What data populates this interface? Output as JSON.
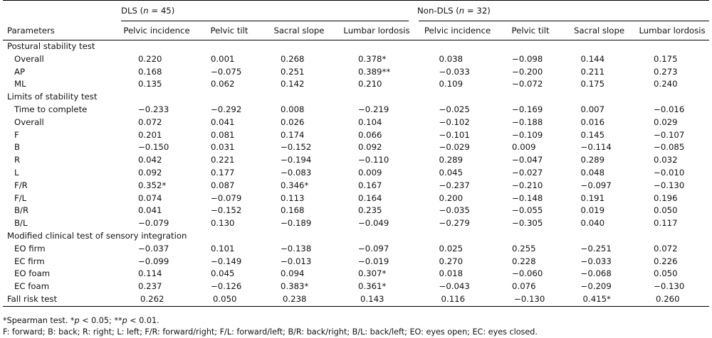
{
  "groups": [
    {
      "label": "DLS (",
      "n_label": "n",
      "n_rest": " = 45)"
    },
    {
      "label": "Non-DLS (",
      "n_label": "n",
      "n_rest": " = 32)"
    }
  ],
  "columns": {
    "param": "Parameters",
    "subcols": [
      "Pelvic incidence",
      "Pelvic tilt",
      "Sacral slope",
      "Lumbar lordosis",
      "Pelvic incidence",
      "Pelvic tilt",
      "Sacral slope",
      "Lumbar lordosis"
    ]
  },
  "rows": [
    {
      "type": "section",
      "label": "Postural stability test"
    },
    {
      "type": "row",
      "label": "Overall",
      "v": [
        "0.220",
        "0.001",
        "0.268",
        "0.378*",
        "0.038",
        "−0.098",
        "0.144",
        "0.175"
      ]
    },
    {
      "type": "row",
      "label": "AP",
      "v": [
        "0.168",
        "−0.075",
        "0.251",
        "0.389**",
        "−0.033",
        "−0.200",
        "0.211",
        "0.273"
      ]
    },
    {
      "type": "row",
      "label": "ML",
      "v": [
        "0.135",
        "0.062",
        "0.142",
        "0.210",
        "0.109",
        "−0.072",
        "0.175",
        "0.240"
      ]
    },
    {
      "type": "section",
      "label": "Limits of stability test"
    },
    {
      "type": "row",
      "label": "Time to complete",
      "v": [
        "−0.233",
        "−0.292",
        "0.008",
        "−0.219",
        "−0.025",
        "−0.169",
        "0.007",
        "−0.016"
      ]
    },
    {
      "type": "row",
      "label": "Overall",
      "v": [
        "0.072",
        "0.041",
        "0.026",
        "0.104",
        "−0.102",
        "−0.188",
        "0.016",
        "0.029"
      ]
    },
    {
      "type": "row",
      "label": "F",
      "v": [
        "0.201",
        "0.081",
        "0.174",
        "0.066",
        "−0.101",
        "−0.109",
        "0.145",
        "−0.107"
      ]
    },
    {
      "type": "row",
      "label": "B",
      "v": [
        "−0.150",
        "0.031",
        "−0.152",
        "0.092",
        "−0.029",
        "0.009",
        "−0.114",
        "−0.085"
      ]
    },
    {
      "type": "row",
      "label": "R",
      "v": [
        "0.042",
        "0.221",
        "−0.194",
        "−0.110",
        "0.289",
        "−0.047",
        "0.289",
        "0.032"
      ]
    },
    {
      "type": "row",
      "label": "L",
      "v": [
        "0.092",
        "0.177",
        "−0.083",
        "0.009",
        "0.045",
        "−0.027",
        "0.048",
        "−0.010"
      ]
    },
    {
      "type": "row",
      "label": "F/R",
      "v": [
        "0.352*",
        "0.087",
        "0.346*",
        "0.167",
        "−0.237",
        "−0.210",
        "−0.097",
        "−0.130"
      ]
    },
    {
      "type": "row",
      "label": "F/L",
      "v": [
        "0.074",
        "−0.079",
        "0.113",
        "0.164",
        "0.200",
        "−0.148",
        "0.191",
        "0.196"
      ]
    },
    {
      "type": "row",
      "label": "B/R",
      "v": [
        "0.041",
        "−0.152",
        "0.168",
        "0.235",
        "−0.035",
        "−0.055",
        "0.019",
        "0.050"
      ]
    },
    {
      "type": "row",
      "label": "B/L",
      "v": [
        "−0.079",
        "0.130",
        "−0.189",
        "−0.049",
        "−0.279",
        "−0.305",
        "0.040",
        "0.117"
      ]
    },
    {
      "type": "section",
      "label": "Modified clinical test of sensory integration"
    },
    {
      "type": "row",
      "label": "EO firm",
      "v": [
        "−0.037",
        "0.101",
        "−0.138",
        "−0.097",
        "0.025",
        "0.255",
        "−0.251",
        "0.072"
      ]
    },
    {
      "type": "row",
      "label": "EC firm",
      "v": [
        "−0.099",
        "−0.149",
        "−0.013",
        "−0.019",
        "0.270",
        "0.228",
        "−0.033",
        "0.226"
      ]
    },
    {
      "type": "row",
      "label": "EO foam",
      "v": [
        "0.114",
        "0.045",
        "0.094",
        "0.307*",
        "0.018",
        "−0.060",
        "−0.068",
        "0.050"
      ]
    },
    {
      "type": "row",
      "label": "EC foam",
      "v": [
        "0.237",
        "−0.126",
        "0.383*",
        "0.361*",
        "−0.043",
        "0.076",
        "−0.209",
        "−0.130"
      ]
    },
    {
      "type": "section-row",
      "label": "Fall risk test",
      "v": [
        "0.262",
        "0.050",
        "0.238",
        "0.143",
        "0.116",
        "−0.130",
        "0.415*",
        "0.260"
      ]
    }
  ],
  "footnote": {
    "lead": "*Spearman test. *",
    "p1": "p",
    "mid": " < 0.05; **",
    "p2": "p",
    "tail": " < 0.01."
  },
  "abbreviations": "F: forward; B: back; R: right; L: left; F/R: forward/right; F/L: forward/left; B/R: back/right; B/L: back/left; EO: eyes open; EC: eyes closed."
}
